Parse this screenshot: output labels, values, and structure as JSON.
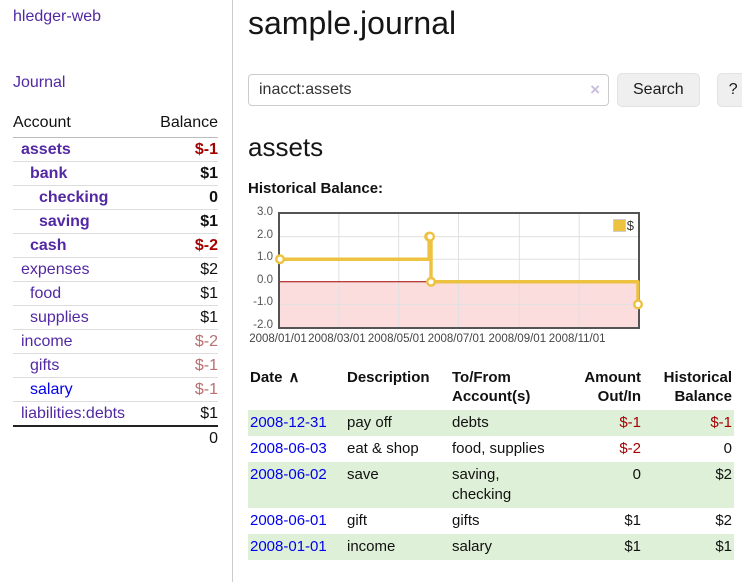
{
  "app": {
    "brand": "hledger-web",
    "nav_journal": "Journal"
  },
  "colors": {
    "accent_purple": "#5229a3",
    "link_blue": "#0000ee",
    "negative_strong": "#a40000",
    "negative_faded": "#b86f6f",
    "row_green": "#dff0d8",
    "series_gold": "#edc240",
    "chart_negative_bg": "#fbdddd",
    "zero_line": "#a40000"
  },
  "sidebar": {
    "col_account": "Account",
    "col_balance": "Balance",
    "accounts": [
      {
        "name": "assets",
        "indent": 0,
        "strong": true,
        "visited": true,
        "balance": "$-1",
        "neg": "strong"
      },
      {
        "name": "bank",
        "indent": 1,
        "strong": true,
        "visited": true,
        "balance": "$1",
        "neg": null
      },
      {
        "name": "checking",
        "indent": 2,
        "strong": true,
        "visited": true,
        "balance": "0",
        "neg": null
      },
      {
        "name": "saving",
        "indent": 2,
        "strong": true,
        "visited": true,
        "balance": "$1",
        "neg": null
      },
      {
        "name": "cash",
        "indent": 1,
        "strong": true,
        "visited": true,
        "balance": "$-2",
        "neg": "strong"
      },
      {
        "name": "expenses",
        "indent": 0,
        "strong": false,
        "visited": true,
        "balance": "$2",
        "neg": null
      },
      {
        "name": "food",
        "indent": 1,
        "strong": false,
        "visited": true,
        "balance": "$1",
        "neg": null
      },
      {
        "name": "supplies",
        "indent": 1,
        "strong": false,
        "visited": true,
        "balance": "$1",
        "neg": null
      },
      {
        "name": "income",
        "indent": 0,
        "strong": false,
        "visited": true,
        "balance": "$-2",
        "neg": "fade"
      },
      {
        "name": "gifts",
        "indent": 1,
        "strong": false,
        "visited": true,
        "balance": "$-1",
        "neg": "fade"
      },
      {
        "name": "salary",
        "indent": 1,
        "strong": false,
        "visited": false,
        "balance": "$-1",
        "neg": "fade"
      },
      {
        "name": "liabilities:debts",
        "indent": 0,
        "strong": false,
        "visited": true,
        "balance": "$1",
        "neg": null
      }
    ],
    "total": "0"
  },
  "main": {
    "title": "sample.journal",
    "account_heading": "assets",
    "chart_label": "Historical Balance:"
  },
  "search": {
    "value": "inacct:assets",
    "clear_icon": "×",
    "button_label": "Search",
    "help_label": "?"
  },
  "chart_data": {
    "type": "line",
    "title": "Historical Balance:",
    "step": true,
    "series": [
      {
        "name": "$",
        "color": "#edc240",
        "points": [
          [
            "2008-01-01",
            1
          ],
          [
            "2008-06-01",
            2
          ],
          [
            "2008-06-02",
            2
          ],
          [
            "2008-06-03",
            0
          ],
          [
            "2008-12-31",
            -1
          ]
        ]
      }
    ],
    "x_range": [
      "2008-01-01",
      "2008-12-31"
    ],
    "x_ticks": [
      "2008/01/01",
      "2008/03/01",
      "2008/05/01",
      "2008/07/01",
      "2008/09/01",
      "2008/11/01"
    ],
    "y_ticks": [
      3,
      2,
      1,
      0,
      -1,
      -2
    ],
    "ylim": [
      -2,
      3
    ],
    "grid": true,
    "legend_position": "top-right",
    "negative_region_color": "#fbdddd",
    "zero_line_color": "#a40000"
  },
  "register": {
    "col_date": "Date",
    "sort_icon": "∧",
    "col_description": "Description",
    "col_accounts": "To/From\nAccount(s)",
    "col_amount": "Amount\nOut/In",
    "col_balance": "Historical\nBalance",
    "rows": [
      {
        "date": "2008-12-31",
        "description": "pay off",
        "accounts": [
          "debts"
        ],
        "amount": "$-1",
        "amount_neg": true,
        "balance": "$-1",
        "balance_neg": true
      },
      {
        "date": "2008-06-03",
        "description": "eat & shop",
        "accounts": [
          "food, supplies"
        ],
        "amount": "$-2",
        "amount_neg": true,
        "balance": "0",
        "balance_neg": false
      },
      {
        "date": "2008-06-02",
        "description": "save",
        "accounts": [
          "saving,",
          "checking"
        ],
        "amount": "0",
        "amount_neg": false,
        "balance": "$2",
        "balance_neg": false
      },
      {
        "date": "2008-06-01",
        "description": "gift",
        "accounts": [
          "gifts"
        ],
        "amount": "$1",
        "amount_neg": false,
        "balance": "$2",
        "balance_neg": false
      },
      {
        "date": "2008-01-01",
        "description": "income",
        "accounts": [
          "salary"
        ],
        "amount": "$1",
        "amount_neg": false,
        "balance": "$1",
        "balance_neg": false
      }
    ]
  }
}
